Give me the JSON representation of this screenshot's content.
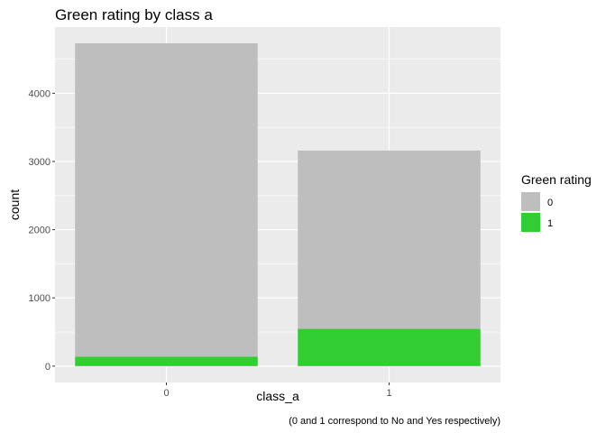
{
  "chart_data": {
    "type": "bar",
    "stacked": true,
    "title": "Green rating by class a",
    "xlabel": "class_a",
    "ylabel": "count",
    "caption": "(0 and 1 correspond to No and Yes respectively)",
    "categories": [
      "0",
      "1"
    ],
    "series": [
      {
        "name": "0",
        "color": "#bebebe",
        "values": [
          4595,
          2614
        ]
      },
      {
        "name": "1",
        "color": "#32cd32",
        "values": [
          137,
          546
        ]
      }
    ],
    "ylim": [
      -240,
      4970
    ],
    "yticks": [
      0,
      1000,
      2000,
      3000,
      4000
    ],
    "grid": true,
    "legend": {
      "title": "Green rating",
      "position": "right"
    }
  }
}
